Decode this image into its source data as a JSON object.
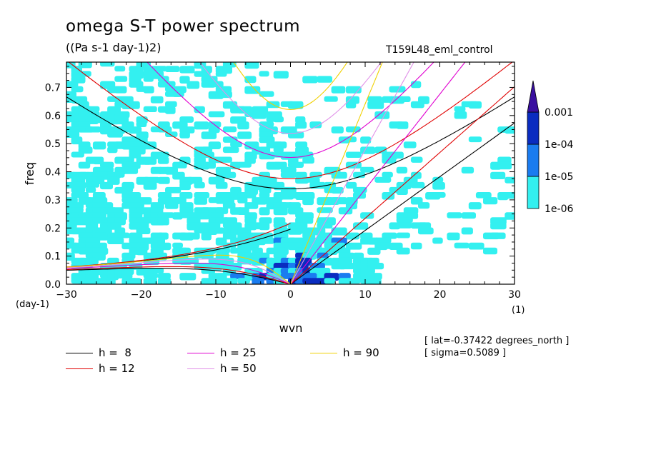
{
  "chart_data": {
    "type": "heatmap",
    "title": "omega S-T power spectrum",
    "subtitle": "((Pa s-1 day-1)2)",
    "run_label": "T159L48_eml_control",
    "xlabel": "wvn",
    "ylabel": "freq",
    "x_unit_label": "(1)",
    "y_unit_label": "(day-1)",
    "xlim": [
      -30,
      30
    ],
    "ylim": [
      0,
      0.79
    ],
    "xticks": [
      -30,
      -20,
      -10,
      0,
      10,
      20,
      30
    ],
    "yticks": [
      0.0,
      0.1,
      0.2,
      0.3,
      0.4,
      0.5,
      0.6,
      0.7
    ],
    "colorbar": {
      "levels": [
        "1e-06",
        "1e-05",
        "1e-04",
        "0.001"
      ],
      "colors": [
        "#33f0f0",
        "#1a7cf0",
        "#0a2cc0",
        "#3a0fa0"
      ]
    },
    "dispersion_curves": [
      {
        "name": "h =  8",
        "h": 8,
        "color": "#000000"
      },
      {
        "name": "h = 12",
        "h": 12,
        "color": "#e00000"
      },
      {
        "name": "h = 25",
        "h": 25,
        "color": "#e000d0"
      },
      {
        "name": "h = 50",
        "h": 50,
        "color": "#e090e8"
      },
      {
        "name": "h = 90",
        "h": 90,
        "color": "#f0d000"
      }
    ],
    "info": [
      "[ lat=-0.37422 degrees_north ]",
      "[ sigma=0.5089 ]"
    ]
  }
}
